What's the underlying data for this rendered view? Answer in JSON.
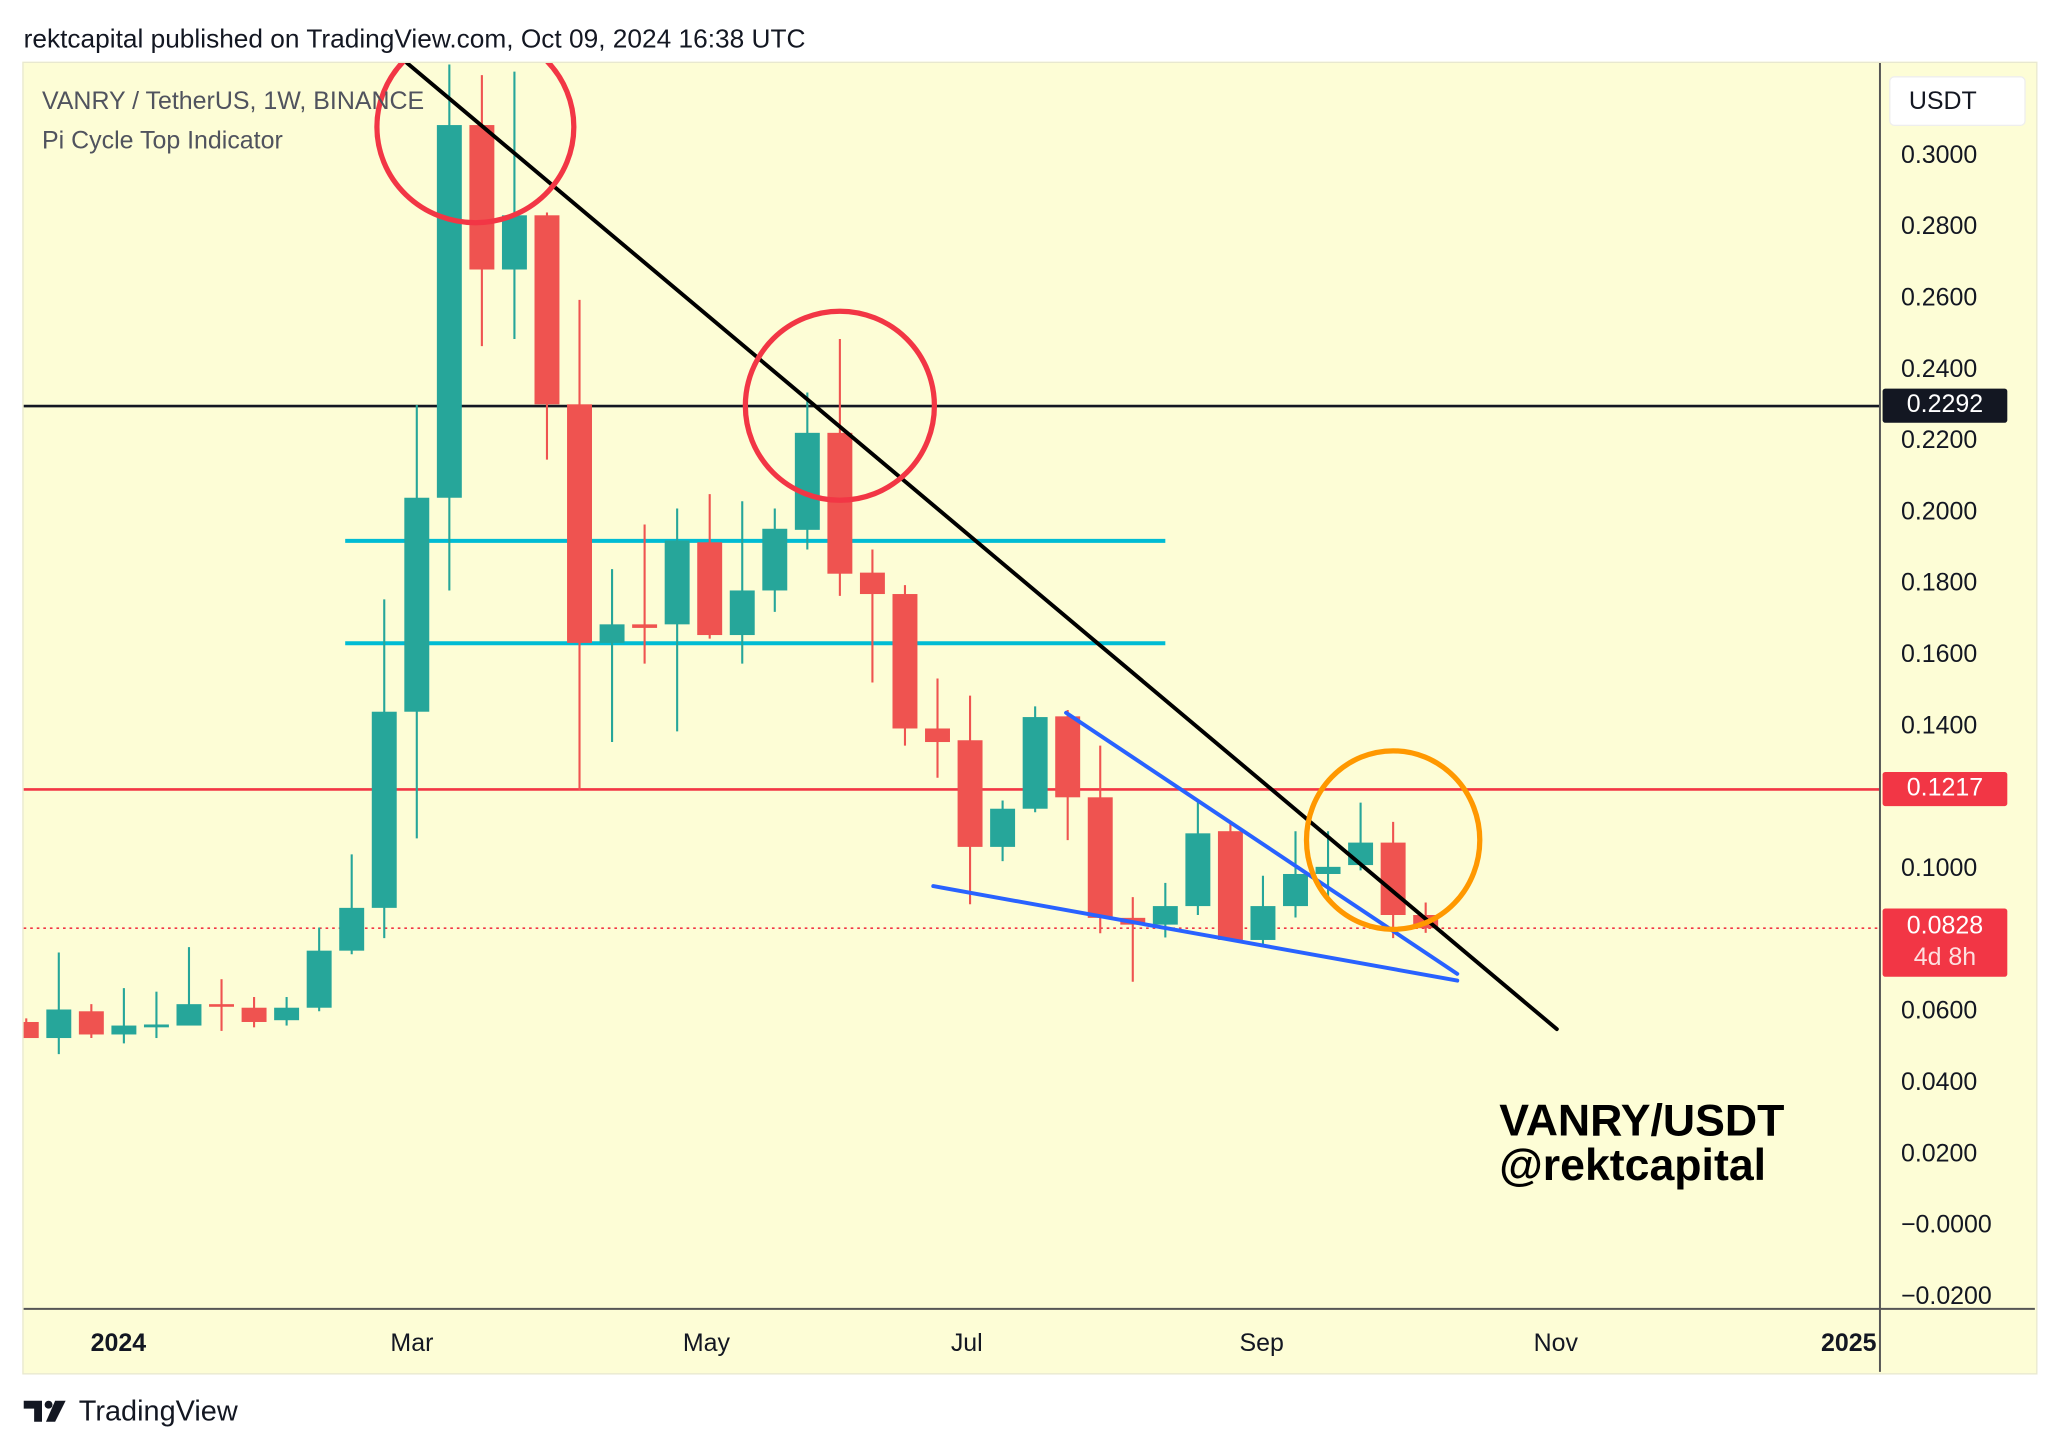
{
  "header": {
    "text": "rektcapital published on TradingView.com, Oct 09, 2024 16:38 UTC"
  },
  "legend": {
    "symbol": "VANRY / TetherUS, 1W, BINANCE",
    "indicator": "Pi Cycle Top Indicator"
  },
  "price_axis": {
    "unit": "USDT"
  },
  "price_labels": {
    "level_black": "0.2292",
    "level_red": "0.1217",
    "last_price": "0.0828",
    "countdown": "4d 8h"
  },
  "watermark": {
    "line1": "VANRY/USDT",
    "line2": "@rektcapital"
  },
  "footer": {
    "brand": "TradingView"
  },
  "colors": {
    "background": "#fdfdd6",
    "up": "#26a69a",
    "down": "#ef5350",
    "trendline": "#000000",
    "wedge": "#2962ff",
    "range": "#00bcd4",
    "circle_red": "#f23645",
    "circle_orange": "#ff9800"
  },
  "chart_data": {
    "type": "candlestick",
    "title": "VANRY / TetherUS, 1W, BINANCE",
    "ylabel": "USDT",
    "ylim": [
      -0.02,
      0.31
    ],
    "yticks": [
      "0.3000",
      "0.2800",
      "0.2600",
      "0.2400",
      "0.2200",
      "0.2000",
      "0.1800",
      "0.1600",
      "0.1400",
      "0.1000",
      "0.0600",
      "0.0400",
      "0.0200",
      "−0.0000",
      "−0.0200"
    ],
    "ytick_values": [
      0.3,
      0.28,
      0.26,
      0.24,
      0.22,
      0.2,
      0.18,
      0.16,
      0.14,
      0.1,
      0.06,
      0.04,
      0.02,
      0.0,
      -0.02
    ],
    "xticks": [
      {
        "label": "2024",
        "index": 2.83,
        "bold": true
      },
      {
        "label": "Mar",
        "index": 11.85
      },
      {
        "label": "May",
        "index": 20.9
      },
      {
        "label": "Jul",
        "index": 28.9
      },
      {
        "label": "Sep",
        "index": 37.96
      },
      {
        "label": "Nov",
        "index": 47.0
      },
      {
        "label": "2025",
        "index": 56.0,
        "bold": true
      }
    ],
    "candles": [
      [
        0.0565,
        0.0575,
        0.052,
        0.052
      ],
      [
        0.052,
        0.076,
        0.0475,
        0.06
      ],
      [
        0.0595,
        0.0615,
        0.052,
        0.053
      ],
      [
        0.053,
        0.066,
        0.0505,
        0.0555
      ],
      [
        0.055,
        0.065,
        0.052,
        0.0558
      ],
      [
        0.0555,
        0.0775,
        0.0555,
        0.0615
      ],
      [
        0.0615,
        0.0685,
        0.054,
        0.061
      ],
      [
        0.0605,
        0.0635,
        0.055,
        0.0565
      ],
      [
        0.057,
        0.0635,
        0.0555,
        0.0605
      ],
      [
        0.0605,
        0.083,
        0.0595,
        0.0765
      ],
      [
        0.0765,
        0.1035,
        0.0755,
        0.0885
      ],
      [
        0.0885,
        0.175,
        0.08,
        0.1435
      ],
      [
        0.1435,
        0.2295,
        0.108,
        0.2035
      ],
      [
        0.2035,
        0.325,
        0.1775,
        0.308
      ],
      [
        0.308,
        0.322,
        0.246,
        0.2675
      ],
      [
        0.2675,
        0.323,
        0.248,
        0.2827
      ],
      [
        0.2827,
        0.2835,
        0.2142,
        0.2297
      ],
      [
        0.2297,
        0.259,
        0.1215,
        0.1628
      ],
      [
        0.1628,
        0.1835,
        0.135,
        0.168
      ],
      [
        0.168,
        0.196,
        0.157,
        0.167
      ],
      [
        0.168,
        0.2005,
        0.138,
        0.1915
      ],
      [
        0.191,
        0.2045,
        0.164,
        0.165
      ],
      [
        0.165,
        0.2025,
        0.157,
        0.1775
      ],
      [
        0.1775,
        0.2005,
        0.1715,
        0.1948
      ],
      [
        0.1945,
        0.233,
        0.189,
        0.2217
      ],
      [
        0.2217,
        0.248,
        0.176,
        0.1822
      ],
      [
        0.1825,
        0.189,
        0.1517,
        0.1765
      ],
      [
        0.1765,
        0.179,
        0.134,
        0.1388
      ],
      [
        0.1388,
        0.1528,
        0.125,
        0.135
      ],
      [
        0.1355,
        0.148,
        0.0895,
        0.1056
      ],
      [
        0.1056,
        0.1186,
        0.1016,
        0.1163
      ],
      [
        0.1163,
        0.145,
        0.1153,
        0.142
      ],
      [
        0.1422,
        0.144,
        0.1075,
        0.1195
      ],
      [
        0.1195,
        0.134,
        0.0814,
        0.0857
      ],
      [
        0.0857,
        0.0915,
        0.0678,
        0.0838
      ],
      [
        0.0838,
        0.0955,
        0.0802,
        0.089
      ],
      [
        0.089,
        0.1186,
        0.0865,
        0.1094
      ],
      [
        0.11,
        0.112,
        0.0795,
        0.0795
      ],
      [
        0.0795,
        0.0975,
        0.078,
        0.089
      ],
      [
        0.089,
        0.11,
        0.0858,
        0.098
      ],
      [
        0.098,
        0.11,
        0.0915,
        0.1
      ],
      [
        0.1005,
        0.118,
        0.099,
        0.1068
      ],
      [
        0.1068,
        0.1126,
        0.08,
        0.0865
      ],
      [
        0.0865,
        0.09,
        0.0815,
        0.0828
      ]
    ],
    "candle_fields": [
      "open",
      "high",
      "low",
      "close"
    ],
    "horizontal_levels": [
      {
        "name": "resistance-black",
        "price": 0.2292,
        "color": "#131722"
      },
      {
        "name": "support-red",
        "price": 0.1217,
        "color": "#f23645"
      },
      {
        "name": "last-price",
        "price": 0.0828,
        "color": "#f23645",
        "dotted": true
      }
    ],
    "range_lines": [
      {
        "price": 0.1914,
        "from": 9.8,
        "to": 35.0
      },
      {
        "price": 0.1627,
        "from": 9.8,
        "to": 35.0
      }
    ],
    "trendlines": [
      {
        "name": "downtrend-line",
        "from": [
          11.7,
          0.3254
        ],
        "to": [
          47.03,
          0.0545
        ],
        "color": "#000000"
      },
      {
        "name": "wedge-upper",
        "from": [
          31.95,
          0.1432
        ],
        "to": [
          43.97,
          0.07
        ],
        "color": "#2962ff"
      },
      {
        "name": "wedge-lower",
        "from": [
          27.87,
          0.0946
        ],
        "to": [
          43.97,
          0.0681
        ],
        "color": "#2962ff"
      }
    ],
    "circles": [
      {
        "name": "top-circle-1",
        "center": [
          13.8,
          0.3075
        ],
        "color": "#f23645"
      },
      {
        "name": "top-circle-2",
        "center": [
          25.0,
          0.2293
        ],
        "color": "#f23645"
      },
      {
        "name": "breakout-circle",
        "center": [
          42.0,
          0.1075
        ],
        "color": "#ff9800"
      }
    ]
  }
}
